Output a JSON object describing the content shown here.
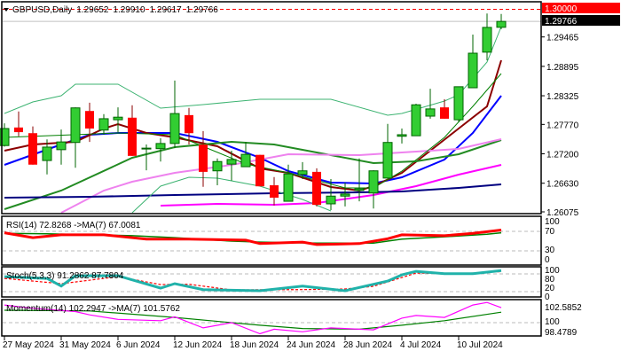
{
  "header": {
    "symbol": "GBPUSD,Daily",
    "open": "1.29652",
    "high": "1.29910",
    "low": "1.29617",
    "close": "1.29766"
  },
  "colors": {
    "bull": "#32CD32",
    "bull_border": "#006400",
    "bear": "#FF0000",
    "bear_wick": "#8B0000",
    "rsi": "#FF0000",
    "rsi_ma": "#008000",
    "stoch_main": "#20B2AA",
    "stoch_signal": "#FF0000",
    "momentum": "#FF00FF",
    "momentum_ma": "#008000",
    "level_line": "#FF0000"
  },
  "price_axis": {
    "ticks": [
      "1.29465",
      "1.28895",
      "1.28325",
      "1.27770",
      "1.27200",
      "1.26630",
      "1.26075"
    ],
    "level_label": "1.30000",
    "current_label": "1.29766"
  },
  "time_axis": {
    "labels": [
      {
        "date": "27 May",
        "text": "27 May 2024"
      },
      {
        "date": "31 May",
        "text": "31 May 2024"
      },
      {
        "date": "6 Jun",
        "text": "6 Jun 2024"
      },
      {
        "date": "12 Jun",
        "text": "12 Jun 2024"
      },
      {
        "date": "18 Jun",
        "text": "18 Jun 2024"
      },
      {
        "date": "24 Jun",
        "text": "24 Jun 2024"
      },
      {
        "date": "28 Jun",
        "text": "28 Jun 2024"
      },
      {
        "date": "4 Jul",
        "text": "4 Jul 2024"
      },
      {
        "date": "10 Jul",
        "text": "10 Jul 2024"
      }
    ]
  },
  "indicators": {
    "rsi_label": "RSI(14) 72.8268  ->MA(7) 67.0081",
    "rsi_axis": [
      "100",
      "70",
      "30",
      "0"
    ],
    "stoch_label": "Stoch(5,3,3) 91.2862 87.7804",
    "stoch_axis": [
      "80",
      "100",
      "20",
      "0"
    ],
    "momentum_label": "Momentum(14) 102.2947  ->MA(7) 101.5762",
    "momentum_axis": [
      "102.5852",
      "100",
      "98.4789"
    ]
  },
  "chart_data": {
    "type": "candlestick",
    "ylim": [
      1.26075,
      1.3
    ],
    "horizontal_level": 1.3,
    "current_price": 1.29766,
    "candles": [
      [
        "27 May",
        1.2736,
        1.2779,
        1.2734,
        1.2769
      ],
      [
        "28 May",
        1.2771,
        1.2802,
        1.2754,
        1.2762
      ],
      [
        "29 May",
        1.276,
        1.2773,
        1.2699,
        1.2699
      ],
      [
        "30 May",
        1.2707,
        1.2748,
        1.268,
        1.2733
      ],
      [
        "31 May",
        1.2728,
        1.2767,
        1.2699,
        1.2743
      ],
      [
        "3 Jun",
        1.2742,
        1.281,
        1.2693,
        1.2809
      ],
      [
        "4 Jun",
        1.2803,
        1.2819,
        1.2743,
        1.2769
      ],
      [
        "5 Jun",
        1.2766,
        1.2797,
        1.2757,
        1.2788
      ],
      [
        "6 Jun",
        1.2786,
        1.281,
        1.2762,
        1.2791
      ],
      [
        "7 Jun",
        1.279,
        1.2814,
        1.2716,
        1.2716
      ],
      [
        "10 Jun",
        1.273,
        1.2738,
        1.2688,
        1.2731
      ],
      [
        "11 Jun",
        1.273,
        1.275,
        1.2705,
        1.274
      ],
      [
        "12 Jun",
        1.274,
        1.2862,
        1.2731,
        1.2798
      ],
      [
        "13 Jun",
        1.2795,
        1.2809,
        1.2738,
        1.276
      ],
      [
        "14 Jun",
        1.2738,
        1.2764,
        1.2656,
        1.2685
      ],
      [
        "17 Jun",
        1.2687,
        1.2711,
        1.2659,
        1.2705
      ],
      [
        "18 Jun",
        1.27,
        1.2726,
        1.2668,
        1.2709
      ],
      [
        "19 Jun",
        1.2695,
        1.2743,
        1.2695,
        1.2719
      ],
      [
        "20 Jun",
        1.2718,
        1.2718,
        1.2657,
        1.2657
      ],
      [
        "21 Jun",
        1.2659,
        1.2675,
        1.262,
        1.2635
      ],
      [
        "24 Jun",
        1.2628,
        1.2699,
        1.2628,
        1.2681
      ],
      [
        "25 Jun",
        1.268,
        1.2704,
        1.2671,
        1.2687
      ],
      [
        "26 Jun",
        1.2685,
        1.2692,
        1.2618,
        1.2621
      ],
      [
        "27 Jun",
        1.2623,
        1.2671,
        1.2611,
        1.2638
      ],
      [
        "28 Jun",
        1.2638,
        1.2664,
        1.2618,
        1.2642
      ],
      [
        "1 Jul",
        1.2649,
        1.2711,
        1.2628,
        1.2652
      ],
      [
        "2 Jul",
        1.2644,
        1.2688,
        1.2614,
        1.2687
      ],
      [
        "3 Jul",
        1.2673,
        1.2778,
        1.2673,
        1.2742
      ],
      [
        "4 Jul",
        1.2754,
        1.2769,
        1.274,
        1.2757
      ],
      [
        "5 Jul",
        1.2755,
        1.2817,
        1.2755,
        1.2815
      ],
      [
        "8 Jul",
        1.2793,
        1.2846,
        1.2788,
        1.2807
      ],
      [
        "9 Jul",
        1.281,
        1.2826,
        1.2788,
        1.2788
      ],
      [
        "10 Jul",
        1.2786,
        1.285,
        1.2781,
        1.285
      ],
      [
        "11 Jul",
        1.2848,
        1.2951,
        1.2848,
        1.2915
      ],
      [
        "12 Jul",
        1.2917,
        1.2992,
        1.2901,
        1.2965
      ],
      [
        "15 Jul",
        1.29652,
        1.2991,
        1.29617,
        1.29766
      ]
    ],
    "overlays": [
      {
        "color": "#0000FF",
        "width": 2,
        "points": [
          [
            "27 May",
            1.26986
          ],
          [
            "31 May",
            1.27381
          ],
          [
            "4 Jun",
            1.2757
          ],
          [
            "6 Jun",
            1.27604
          ],
          [
            "12 Jun",
            1.27604
          ],
          [
            "17 Jun",
            1.27432
          ],
          [
            "20 Jun",
            1.27123
          ],
          [
            "24 Jun",
            1.26865
          ],
          [
            "27 Jun",
            1.26642
          ],
          [
            "2 Jul",
            1.26625
          ],
          [
            "4 Jul",
            1.26745
          ],
          [
            "9 Jul",
            1.27089
          ],
          [
            "11 Jul",
            1.27604
          ],
          [
            "15 Jul",
            1.28326
          ]
        ]
      },
      {
        "color": "#8B0000",
        "width": 2,
        "points": [
          [
            "27 May",
            1.2726
          ],
          [
            "29 May",
            1.27381
          ],
          [
            "3 Jun",
            1.27432
          ],
          [
            "5 Jun",
            1.2769
          ],
          [
            "6 Jun",
            1.27776
          ],
          [
            "10 Jun",
            1.27604
          ],
          [
            "12 Jun",
            1.27518
          ],
          [
            "17 Jun",
            1.27346
          ],
          [
            "20 Jun",
            1.26917
          ],
          [
            "24 Jun",
            1.26831
          ],
          [
            "27 Jun",
            1.26556
          ],
          [
            "1 Jul",
            1.26487
          ],
          [
            "2 Jul",
            1.26573
          ],
          [
            "4 Jul",
            1.26831
          ],
          [
            "8 Jul",
            1.2726
          ],
          [
            "10 Jul",
            1.2769
          ],
          [
            "12 Jul",
            1.28119
          ],
          [
            "15 Jul",
            1.29013
          ]
        ]
      },
      {
        "color": "#228B22",
        "width": 2,
        "points": [
          [
            "27 May",
            1.26127
          ],
          [
            "31 May",
            1.26487
          ],
          [
            "7 Jun",
            1.27123
          ],
          [
            "12 Jun",
            1.27329
          ],
          [
            "18 Jun",
            1.27432
          ],
          [
            "21 Jun",
            1.27381
          ],
          [
            "27 Jun",
            1.27174
          ],
          [
            "2 Jul",
            1.2702
          ],
          [
            "5 Jul",
            1.27054
          ],
          [
            "10 Jul",
            1.27192
          ],
          [
            "15 Jul",
            1.27467
          ]
        ]
      },
      {
        "color": "#EE82EE",
        "width": 2,
        "points": [
          [
            "31 May",
            1.26058
          ],
          [
            "5 Jun",
            1.26487
          ],
          [
            "7 Jun",
            1.26659
          ],
          [
            "12 Jun",
            1.26831
          ],
          [
            "18 Jun",
            1.26986
          ],
          [
            "24 Jun",
            1.27192
          ],
          [
            "1 Jul",
            1.27174
          ],
          [
            "4 Jul",
            1.27226
          ],
          [
            "10 Jul",
            1.27295
          ],
          [
            "15 Jul",
            1.27484
          ]
        ]
      },
      {
        "color": "#FF00FF",
        "width": 2,
        "points": [
          [
            "11 Jun",
            1.26195
          ],
          [
            "17 Jun",
            1.2623
          ],
          [
            "21 Jun",
            1.26212
          ],
          [
            "26 Jun",
            1.26247
          ],
          [
            "2 Jul",
            1.26401
          ],
          [
            "5 Jul",
            1.26573
          ],
          [
            "10 Jul",
            1.26797
          ],
          [
            "15 Jul",
            1.26986
          ]
        ]
      },
      {
        "color": "#000080",
        "width": 2,
        "points": [
          [
            "27 May",
            1.2635
          ],
          [
            "4 Jun",
            1.26367
          ],
          [
            "12 Jun",
            1.26401
          ],
          [
            "21 Jun",
            1.26436
          ],
          [
            "1 Jul",
            1.26453
          ],
          [
            "4 Jul",
            1.2647
          ],
          [
            "10 Jul",
            1.26539
          ],
          [
            "15 Jul",
            1.26608
          ]
        ]
      },
      {
        "color": "#3CB371",
        "width": 1,
        "points": [
          [
            "27 May",
            1.27982
          ],
          [
            "29 May",
            1.28205
          ],
          [
            "31 May",
            1.28326
          ],
          [
            "3 Jun",
            1.28549
          ],
          [
            "6 Jun",
            1.28549
          ],
          [
            "11 Jun",
            1.28085
          ],
          [
            "14 Jun",
            1.28154
          ],
          [
            "20 Jun",
            1.28257
          ],
          [
            "27 Jun",
            1.28257
          ],
          [
            "3 Jul",
            1.27948
          ],
          [
            "4 Jul",
            1.27982
          ],
          [
            "9 Jul",
            1.28222
          ],
          [
            "10 Jul",
            1.28343
          ],
          [
            "12 Jul",
            1.28978
          ],
          [
            "15 Jul",
            1.29666
          ]
        ]
      },
      {
        "color": "#3CB371",
        "width": 1,
        "points": [
          [
            "7 Jun",
            1.26058
          ],
          [
            "11 Jun",
            1.26573
          ],
          [
            "13 Jun",
            1.26745
          ],
          [
            "17 Jun",
            1.26728
          ],
          [
            "20 Jun",
            1.26573
          ],
          [
            "25 Jun",
            1.26315
          ],
          [
            "27 Jun",
            1.26092
          ]
        ]
      },
      {
        "color": "#008000",
        "width": 1,
        "points": [
          [
            "27 May",
            1.27518
          ],
          [
            "6 Jun",
            1.27604
          ],
          [
            "12 Jun",
            1.2757
          ],
          [
            "19 Jun",
            1.27003
          ],
          [
            "24 Jun",
            1.26831
          ],
          [
            "28 Jun",
            1.26539
          ],
          [
            "2 Jul",
            1.26539
          ],
          [
            "4 Jul",
            1.26865
          ],
          [
            "9 Jul",
            1.27518
          ],
          [
            "11 Jul",
            1.28119
          ],
          [
            "15 Jul",
            1.28755
          ]
        ]
      }
    ],
    "rsi": {
      "ylim": [
        0,
        100
      ],
      "levels": [
        70,
        30
      ],
      "main": [
        [
          "27 May",
          67
        ],
        [
          "29 May",
          57
        ],
        [
          "31 May",
          63
        ],
        [
          "5 Jun",
          63
        ],
        [
          "10 Jun",
          54
        ],
        [
          "13 Jun",
          54
        ],
        [
          "19 Jun",
          52
        ],
        [
          "20 Jun",
          45
        ],
        [
          "25 Jun",
          48
        ],
        [
          "26 Jun",
          43
        ],
        [
          "1 Jul",
          45
        ],
        [
          "3 Jul",
          55
        ],
        [
          "4 Jul",
          63
        ],
        [
          "9 Jul",
          61
        ],
        [
          "11 Jul",
          66
        ],
        [
          "15 Jul",
          72.8
        ]
      ],
      "ma": [
        [
          "27 May",
          66
        ],
        [
          "30 May",
          65
        ],
        [
          "7 Jun",
          61
        ],
        [
          "12 Jun",
          57
        ],
        [
          "18 Jun",
          50
        ],
        [
          "20 Jun",
          48
        ],
        [
          "26 Jun",
          46
        ],
        [
          "2 Jul",
          46
        ],
        [
          "4 Jul",
          54
        ],
        [
          "9 Jul",
          59
        ],
        [
          "12 Jul",
          64
        ],
        [
          "15 Jul",
          67
        ]
      ]
    },
    "stoch": {
      "ylim": [
        0,
        100
      ],
      "levels": [
        80,
        20
      ],
      "main": [
        [
          "27 May",
          71
        ],
        [
          "30 May",
          65
        ],
        [
          "31 May",
          39
        ],
        [
          "3 Jun",
          74
        ],
        [
          "6 Jun",
          74
        ],
        [
          "11 Jun",
          32
        ],
        [
          "12 Jun",
          47
        ],
        [
          "14 Jun",
          27
        ],
        [
          "20 Jun",
          23
        ],
        [
          "25 Jun",
          39
        ],
        [
          "28 Jun",
          23
        ],
        [
          "3 Jul",
          56
        ],
        [
          "4 Jul",
          77
        ],
        [
          "5 Jul",
          89
        ],
        [
          "9 Jul",
          81
        ],
        [
          "11 Jul",
          81
        ],
        [
          "15 Jul",
          91.3
        ]
      ],
      "signal": [
        [
          "27 May",
          65
        ],
        [
          "31 May",
          47
        ],
        [
          "3 Jun",
          53
        ],
        [
          "6 Jun",
          71
        ],
        [
          "11 Jun",
          44
        ],
        [
          "13 Jun",
          45
        ],
        [
          "18 Jun",
          26
        ],
        [
          "25 Jun",
          27
        ],
        [
          "28 Jun",
          29
        ],
        [
          "2 Jul",
          38
        ],
        [
          "4 Jul",
          68
        ],
        [
          "5 Jul",
          83
        ],
        [
          "10 Jul",
          81
        ],
        [
          "15 Jul",
          87.8
        ]
      ]
    },
    "momentum": {
      "levels": [
        100
      ],
      "main": [
        [
          "27 May",
          102.7
        ],
        [
          "29 May",
          102.2
        ],
        [
          "3 Jun",
          101.7
        ],
        [
          "4 Jun",
          101.2
        ],
        [
          "6 Jun",
          100.5
        ],
        [
          "11 Jun",
          100.3
        ],
        [
          "12 Jun",
          100.9
        ],
        [
          "14 Jun",
          99.2
        ],
        [
          "18 Jun",
          100
        ],
        [
          "20 Jun",
          98.3
        ],
        [
          "21 Jun",
          99.0
        ],
        [
          "25 Jun",
          98.6
        ],
        [
          "27 Jun",
          99.2
        ],
        [
          "2 Jul",
          98.9
        ],
        [
          "4 Jul",
          100.7
        ],
        [
          "5 Jul",
          101.1
        ],
        [
          "9 Jul",
          100.8
        ],
        [
          "11 Jul",
          102.7
        ],
        [
          "12 Jul",
          103.1
        ],
        [
          "15 Jul",
          102.3
        ]
      ],
      "ma": [
        [
          "27 May",
          101.9
        ],
        [
          "4 Jun",
          101.8
        ],
        [
          "12 Jun",
          100.8
        ],
        [
          "18 Jun",
          100
        ],
        [
          "20 Jun",
          99.6
        ],
        [
          "25 Jun",
          99.1
        ],
        [
          "1 Jul",
          99.0
        ],
        [
          "4 Jul",
          99.6
        ],
        [
          "9 Jul",
          100.3
        ],
        [
          "15 Jul",
          101.6
        ]
      ]
    }
  }
}
